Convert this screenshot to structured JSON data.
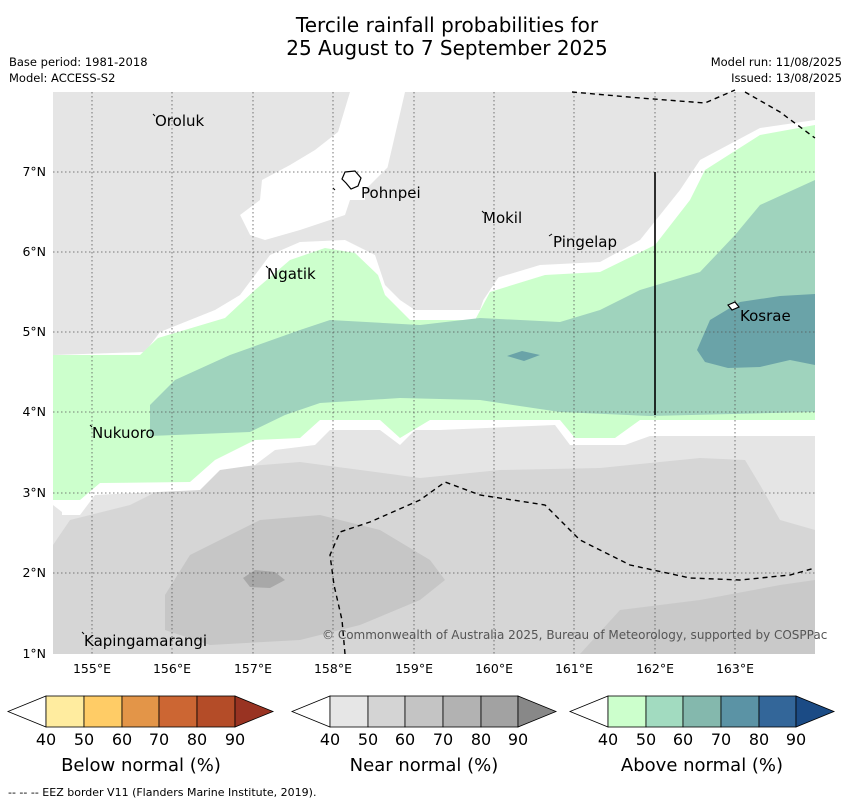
{
  "title": {
    "line1": "Tercile rainfall probabilities for",
    "line2": "25 August to 7 September 2025"
  },
  "meta_left": {
    "base_period": "Base period: 1981-2018",
    "model": "Model: ACCESS-S2"
  },
  "meta_right": {
    "model_run": "Model run: 11/08/2025",
    "issued": "Issued: 13/08/2025"
  },
  "map": {
    "lat_ticks": [
      "7°N",
      "6°N",
      "5°N",
      "4°N",
      "3°N",
      "2°N",
      "1°N"
    ],
    "lon_ticks": [
      "155°E",
      "156°E",
      "157°E",
      "158°E",
      "159°E",
      "160°E",
      "161°E",
      "162°E",
      "163°E"
    ],
    "places": {
      "oroluk": "Oroluk",
      "pohnpei": "Pohnpei",
      "mokil": "Mokil",
      "pingelap": "Pingelap",
      "ngatik": "Ngatik",
      "kosrae": "Kosrae",
      "nukuoro": "Nukuoro",
      "kapingamarangi": "Kapingamarangi"
    },
    "copyright": "© Commonwealth of Australia 2025, Bureau of Meteorology, supported by COSPPac",
    "colors": {
      "land_mask_near": "#e5e5e5",
      "near_50": "#d6d6d6",
      "near_60": "#c6c6c6",
      "near_70": "#b2b2b2",
      "above_40": "#ccffcc",
      "above_50": "#9fd3bd",
      "above_60": "#6aa3a8",
      "white": "#ffffff"
    }
  },
  "colorbars": {
    "below": {
      "ticks": [
        "40",
        "50",
        "60",
        "70",
        "80",
        "90"
      ],
      "label": "Below normal (%)",
      "colors": [
        "#ffffff",
        "#ffec9f",
        "#ffcc66",
        "#e39548",
        "#cc6633",
        "#b44c28",
        "#993322"
      ]
    },
    "near": {
      "ticks": [
        "40",
        "50",
        "60",
        "70",
        "80",
        "90"
      ],
      "label": "Near normal (%)",
      "colors": [
        "#ffffff",
        "#e6e6e6",
        "#d4d4d4",
        "#c4c4c4",
        "#b2b2b2",
        "#a2a2a2",
        "#888888"
      ]
    },
    "above": {
      "ticks": [
        "40",
        "50",
        "60",
        "70",
        "80",
        "90"
      ],
      "label": "Above normal (%)",
      "colors": [
        "#ffffff",
        "#ccffcc",
        "#a2dbc0",
        "#84b8ad",
        "#5b93a5",
        "#336699",
        "#1b4b85"
      ]
    }
  },
  "footer": "--  --  -- EEZ border V11 (Flanders Marine Institute, 2019)."
}
